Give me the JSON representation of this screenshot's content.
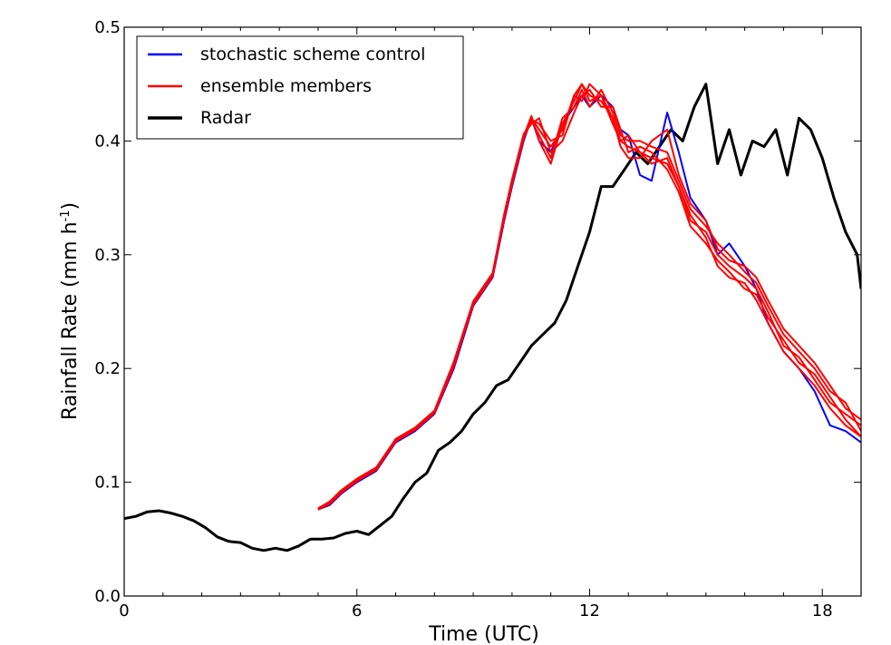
{
  "chart_data": {
    "type": "line",
    "xlabel": "Time (UTC)",
    "ylabel": "Rainfall Rate (mm h",
    "ylabel_sup": "-1",
    "ylabel_end": ")",
    "xlim": [
      0,
      19
    ],
    "ylim": [
      0.0,
      0.5
    ],
    "x_ticks": [
      {
        "value": 0,
        "label": "0"
      },
      {
        "value": 6,
        "label": "6"
      },
      {
        "value": 12,
        "label": "12"
      },
      {
        "value": 18,
        "label": "18"
      }
    ],
    "y_ticks": [
      {
        "value": 0.0,
        "label": "0.0"
      },
      {
        "value": 0.1,
        "label": "0.1"
      },
      {
        "value": 0.2,
        "label": "0.2"
      },
      {
        "value": 0.3,
        "label": "0.3"
      },
      {
        "value": 0.4,
        "label": "0.4"
      },
      {
        "value": 0.5,
        "label": "0.5"
      }
    ],
    "grid": false,
    "legend_position": "top-left",
    "series": [
      {
        "name": "stochastic scheme control",
        "color": "#0000ff",
        "width": 2,
        "x": [
          5.0,
          5.3,
          5.6,
          6.0,
          6.5,
          7.0,
          7.5,
          8.0,
          8.5,
          9.0,
          9.5,
          9.8,
          10.0,
          10.3,
          10.5,
          10.7,
          11.0,
          11.3,
          11.6,
          11.8,
          12.0,
          12.3,
          12.6,
          12.8,
          13.0,
          13.3,
          13.6,
          14.0,
          14.3,
          14.6,
          15.0,
          15.3,
          15.6,
          16.0,
          16.3,
          16.6,
          17.0,
          17.4,
          17.8,
          18.2,
          18.6,
          19.0
        ],
        "y": [
          0.076,
          0.08,
          0.09,
          0.1,
          0.11,
          0.135,
          0.145,
          0.16,
          0.2,
          0.255,
          0.28,
          0.33,
          0.36,
          0.4,
          0.42,
          0.4,
          0.39,
          0.415,
          0.43,
          0.44,
          0.43,
          0.44,
          0.43,
          0.41,
          0.405,
          0.37,
          0.365,
          0.425,
          0.39,
          0.35,
          0.33,
          0.3,
          0.31,
          0.29,
          0.27,
          0.24,
          0.215,
          0.2,
          0.18,
          0.15,
          0.145,
          0.135
        ]
      },
      {
        "name": "ensemble members",
        "color": "#ff0000",
        "width": 2,
        "members": [
          {
            "x": [
              5.0,
              5.3,
              5.6,
              6.0,
              6.5,
              7.0,
              7.5,
              8.0,
              8.5,
              9.0,
              9.5,
              9.8,
              10.0,
              10.3,
              10.5,
              10.7,
              11.0,
              11.3,
              11.6,
              11.8,
              12.0,
              12.3,
              12.6,
              12.8,
              13.0,
              13.3,
              13.6,
              14.0,
              14.3,
              14.6,
              15.0,
              15.3,
              15.6,
              16.0,
              16.3,
              16.6,
              17.0,
              17.4,
              17.8,
              18.2,
              18.6,
              19.0
            ],
            "y": [
              0.077,
              0.082,
              0.092,
              0.102,
              0.112,
              0.137,
              0.147,
              0.162,
              0.205,
              0.258,
              0.283,
              0.335,
              0.365,
              0.405,
              0.42,
              0.41,
              0.395,
              0.41,
              0.44,
              0.45,
              0.435,
              0.44,
              0.42,
              0.4,
              0.395,
              0.39,
              0.385,
              0.38,
              0.36,
              0.33,
              0.32,
              0.3,
              0.29,
              0.28,
              0.27,
              0.25,
              0.22,
              0.21,
              0.19,
              0.17,
              0.16,
              0.15
            ]
          },
          {
            "x": [
              5.0,
              5.3,
              5.6,
              6.0,
              6.5,
              7.0,
              7.5,
              8.0,
              8.5,
              9.0,
              9.5,
              9.8,
              10.0,
              10.3,
              10.5,
              10.7,
              11.0,
              11.3,
              11.6,
              11.8,
              12.0,
              12.3,
              12.6,
              12.8,
              13.0,
              13.3,
              13.6,
              14.0,
              14.3,
              14.6,
              15.0,
              15.3,
              15.6,
              16.0,
              16.3,
              16.6,
              17.0,
              17.4,
              17.8,
              18.2,
              18.6,
              19.0
            ],
            "y": [
              0.076,
              0.081,
              0.091,
              0.101,
              0.111,
              0.136,
              0.146,
              0.161,
              0.203,
              0.257,
              0.282,
              0.332,
              0.362,
              0.402,
              0.418,
              0.405,
              0.385,
              0.42,
              0.43,
              0.445,
              0.43,
              0.445,
              0.425,
              0.405,
              0.4,
              0.4,
              0.395,
              0.39,
              0.365,
              0.34,
              0.325,
              0.31,
              0.3,
              0.285,
              0.275,
              0.255,
              0.23,
              0.215,
              0.2,
              0.18,
              0.17,
              0.145
            ]
          },
          {
            "x": [
              5.0,
              5.3,
              5.6,
              6.0,
              6.5,
              7.0,
              7.5,
              8.0,
              8.5,
              9.0,
              9.5,
              9.8,
              10.0,
              10.3,
              10.5,
              10.7,
              11.0,
              11.3,
              11.6,
              11.8,
              12.0,
              12.3,
              12.6,
              12.8,
              13.0,
              13.3,
              13.6,
              14.0,
              14.3,
              14.6,
              15.0,
              15.3,
              15.6,
              16.0,
              16.3,
              16.6,
              17.0,
              17.4,
              17.8,
              18.2,
              18.6,
              19.0
            ],
            "y": [
              0.077,
              0.083,
              0.093,
              0.103,
              0.113,
              0.138,
              0.148,
              0.163,
              0.206,
              0.259,
              0.284,
              0.336,
              0.366,
              0.406,
              0.415,
              0.42,
              0.39,
              0.4,
              0.425,
              0.44,
              0.445,
              0.43,
              0.43,
              0.41,
              0.39,
              0.395,
              0.39,
              0.375,
              0.355,
              0.325,
              0.31,
              0.295,
              0.285,
              0.27,
              0.265,
              0.245,
              0.225,
              0.205,
              0.195,
              0.175,
              0.155,
              0.14
            ]
          },
          {
            "x": [
              5.0,
              5.3,
              5.6,
              6.0,
              6.5,
              7.0,
              7.5,
              8.0,
              8.5,
              9.0,
              9.5,
              9.8,
              10.0,
              10.3,
              10.5,
              10.7,
              11.0,
              11.3,
              11.6,
              11.8,
              12.0,
              12.3,
              12.6,
              12.8,
              13.0,
              13.3,
              13.6,
              14.0,
              14.3,
              14.6,
              15.0,
              15.3,
              15.6,
              16.0,
              16.3,
              16.6,
              17.0,
              17.4,
              17.8,
              18.2,
              18.6,
              19.0
            ],
            "y": [
              0.076,
              0.082,
              0.092,
              0.102,
              0.112,
              0.137,
              0.147,
              0.162,
              0.204,
              0.256,
              0.281,
              0.334,
              0.364,
              0.404,
              0.422,
              0.4,
              0.38,
              0.415,
              0.435,
              0.45,
              0.44,
              0.435,
              0.42,
              0.395,
              0.385,
              0.385,
              0.4,
              0.41,
              0.37,
              0.345,
              0.33,
              0.305,
              0.295,
              0.29,
              0.28,
              0.26,
              0.235,
              0.22,
              0.205,
              0.185,
              0.165,
              0.155
            ]
          },
          {
            "x": [
              5.0,
              5.3,
              5.6,
              6.0,
              6.5,
              7.0,
              7.5,
              8.0,
              8.5,
              9.0,
              9.5,
              9.8,
              10.0,
              10.3,
              10.5,
              10.7,
              11.0,
              11.3,
              11.6,
              11.8,
              12.0,
              12.3,
              12.6,
              12.8,
              13.0,
              13.3,
              13.6,
              14.0,
              14.3,
              14.6,
              15.0,
              15.3,
              15.6,
              16.0,
              16.3,
              16.6,
              17.0,
              17.4,
              17.8,
              18.2,
              18.6,
              19.0
            ],
            "y": [
              0.077,
              0.081,
              0.091,
              0.101,
              0.111,
              0.136,
              0.146,
              0.161,
              0.202,
              0.258,
              0.283,
              0.333,
              0.363,
              0.403,
              0.419,
              0.415,
              0.4,
              0.405,
              0.44,
              0.435,
              0.45,
              0.44,
              0.415,
              0.4,
              0.405,
              0.39,
              0.38,
              0.385,
              0.36,
              0.335,
              0.315,
              0.29,
              0.28,
              0.275,
              0.26,
              0.24,
              0.215,
              0.2,
              0.185,
              0.165,
              0.15,
              0.14
            ]
          }
        ]
      },
      {
        "name": "Radar",
        "color": "#000000",
        "width": 3,
        "x": [
          0,
          0.3,
          0.6,
          0.9,
          1.2,
          1.5,
          1.8,
          2.1,
          2.4,
          2.7,
          3.0,
          3.3,
          3.6,
          3.9,
          4.2,
          4.5,
          4.8,
          5.1,
          5.4,
          5.7,
          6.0,
          6.3,
          6.6,
          6.9,
          7.2,
          7.5,
          7.8,
          8.1,
          8.4,
          8.7,
          9.0,
          9.3,
          9.6,
          9.9,
          10.2,
          10.5,
          10.8,
          11.1,
          11.4,
          11.7,
          12.0,
          12.3,
          12.6,
          12.9,
          13.2,
          13.5,
          13.8,
          14.1,
          14.4,
          14.7,
          15.0,
          15.3,
          15.6,
          15.9,
          16.2,
          16.5,
          16.8,
          17.1,
          17.4,
          17.7,
          18.0,
          18.3,
          18.6,
          18.9,
          19.0
        ],
        "y": [
          0.068,
          0.07,
          0.074,
          0.075,
          0.073,
          0.07,
          0.066,
          0.06,
          0.052,
          0.048,
          0.047,
          0.042,
          0.04,
          0.042,
          0.04,
          0.044,
          0.05,
          0.05,
          0.051,
          0.055,
          0.057,
          0.054,
          0.062,
          0.07,
          0.086,
          0.1,
          0.108,
          0.128,
          0.135,
          0.145,
          0.16,
          0.17,
          0.185,
          0.19,
          0.205,
          0.22,
          0.23,
          0.24,
          0.26,
          0.29,
          0.32,
          0.36,
          0.36,
          0.375,
          0.39,
          0.38,
          0.395,
          0.41,
          0.4,
          0.43,
          0.45,
          0.38,
          0.41,
          0.37,
          0.4,
          0.395,
          0.41,
          0.37,
          0.42,
          0.41,
          0.385,
          0.35,
          0.32,
          0.3,
          0.27
        ]
      }
    ]
  }
}
